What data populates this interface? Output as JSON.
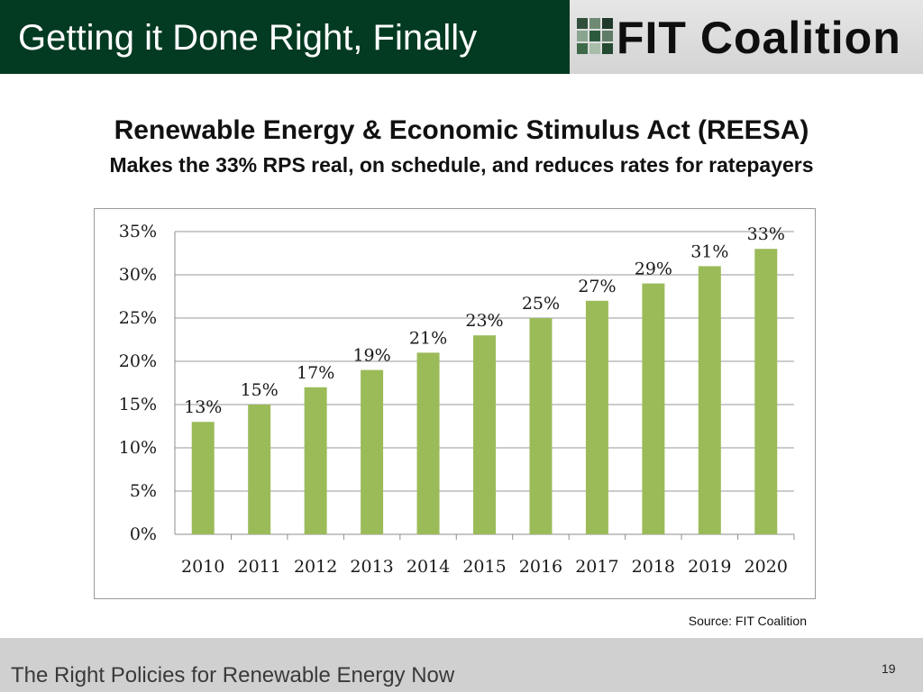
{
  "header": {
    "title": "Getting it Done Right, Finally",
    "logo_text": "FIT Coalition"
  },
  "heading": "Renewable Energy & Economic Stimulus Act (REESA)",
  "subheading": "Makes the 33% RPS real, on schedule, and reduces rates for ratepayers",
  "colors": {
    "title_band": "#033a22",
    "bar": "#9bbb59",
    "footer": "#d0d0d0"
  },
  "chart_data": {
    "type": "bar",
    "categories": [
      "2010",
      "2011",
      "2012",
      "2013",
      "2014",
      "2015",
      "2016",
      "2017",
      "2018",
      "2019",
      "2020"
    ],
    "values": [
      13,
      15,
      17,
      19,
      21,
      23,
      25,
      27,
      29,
      31,
      33
    ],
    "data_labels": [
      "13%",
      "15%",
      "17%",
      "19%",
      "21%",
      "23%",
      "25%",
      "27%",
      "29%",
      "31%",
      "33%"
    ],
    "y_ticks": [
      "0%",
      "5%",
      "10%",
      "15%",
      "20%",
      "25%",
      "30%",
      "35%"
    ],
    "ylim": [
      0,
      35
    ],
    "grid": true,
    "legend": "none",
    "title": "",
    "xlabel": "",
    "ylabel": ""
  },
  "source": "Source:  FIT Coalition",
  "footer": {
    "text": "The Right Policies for Renewable Energy Now",
    "page_number": "19"
  }
}
